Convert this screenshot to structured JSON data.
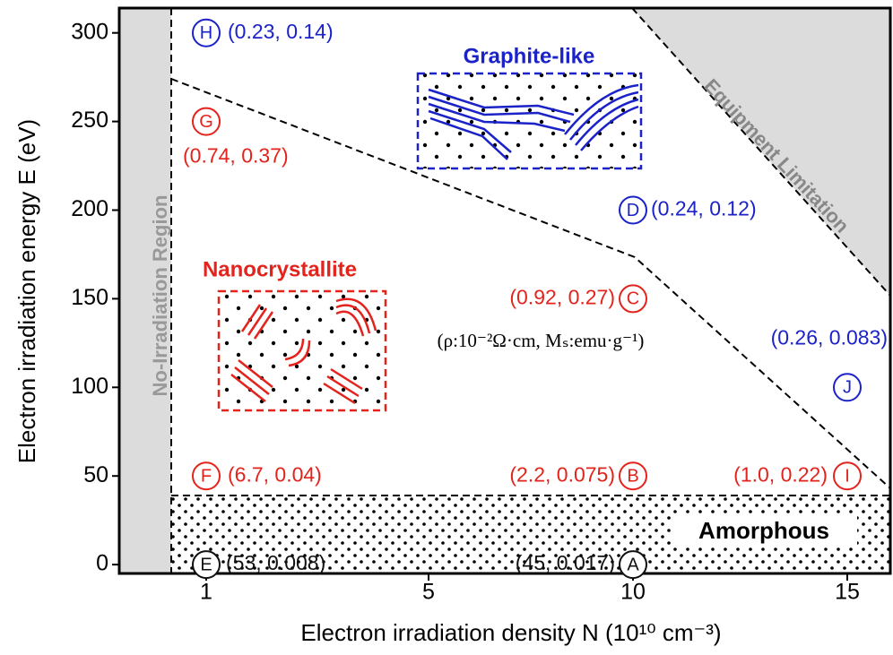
{
  "chart_data": {
    "type": "scatter",
    "xlabel": "Electron irradiation density N (10¹⁰ cm⁻³)",
    "ylabel": "Electron irradiation energy E (eV)",
    "categories": [
      "1",
      "5",
      "10",
      "15"
    ],
    "ylim": [
      -5,
      314
    ],
    "yticks": [
      0,
      50,
      100,
      150,
      200,
      250,
      300
    ],
    "points": [
      {
        "letter": "H",
        "x": "1",
        "y": 300,
        "label": "(0.23, 0.14)",
        "color": "#1a22c8"
      },
      {
        "letter": "G",
        "x": "1",
        "y": 250,
        "label": "(0.74, 0.37)",
        "color": "#e3231c"
      },
      {
        "letter": "F",
        "x": "1",
        "y": 50,
        "label": "(6.7, 0.04)",
        "color": "#e3231c"
      },
      {
        "letter": "E",
        "x": "1",
        "y": 0,
        "label": "(53, 0.008)",
        "color": "#111111"
      },
      {
        "letter": "D",
        "x": "10",
        "y": 200,
        "label": "(0.24, 0.12)",
        "color": "#1a22c8"
      },
      {
        "letter": "C",
        "x": "10",
        "y": 150,
        "label": "(0.92, 0.27)",
        "color": "#e3231c"
      },
      {
        "letter": "B",
        "x": "10",
        "y": 50,
        "label": "(2.2, 0.075)",
        "color": "#e3231c"
      },
      {
        "letter": "A",
        "x": "10",
        "y": 0,
        "label": "(45, 0.017)",
        "color": "#111111"
      },
      {
        "letter": "J",
        "x": "15",
        "y": 100,
        "label": "(0.26, 0.083)",
        "color": "#1a22c8"
      },
      {
        "letter": "I",
        "x": "15",
        "y": 50,
        "label": "(1.0, 0.22)",
        "color": "#e3231c"
      }
    ],
    "regions": {
      "no_irradiation": "No-Irradiation Region",
      "equipment": "Equipment Limitation",
      "graphite": "Graphite-like",
      "nanocrystallite": "Nanocrystallite",
      "amorphous": "Amorphous"
    },
    "note": "(ρ:10⁻²Ω·cm, Mₛ:emu·g⁻¹)"
  }
}
